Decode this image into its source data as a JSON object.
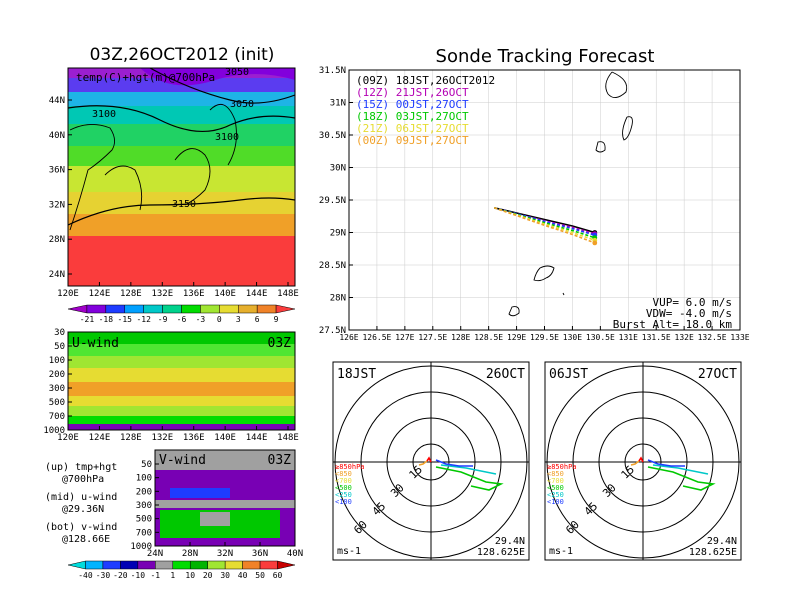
{
  "left_title": "03Z,26OCT2012 (init)",
  "right_title": "Sonde Tracking Forecast",
  "map_panel": {
    "label": "temp(C)+hgt(m)@700hPa",
    "contour_labels": [
      "3100",
      "3050",
      "3100",
      "3150",
      "3050"
    ],
    "lat_ticks": [
      "44N",
      "40N",
      "36N",
      "32N",
      "28N",
      "24N"
    ],
    "lon_ticks": [
      "120E",
      "124E",
      "128E",
      "132E",
      "136E",
      "140E",
      "144E",
      "148E"
    ]
  },
  "temp_colorbar": {
    "labels": [
      "-21",
      "-18",
      "-15",
      "-12",
      "-9",
      "-6",
      "-3",
      "0",
      "3",
      "6",
      "9"
    ],
    "colors": [
      "#a000c8",
      "#8200dc",
      "#1e3cff",
      "#00a0ff",
      "#00c8c8",
      "#00d28c",
      "#00dc00",
      "#a0e632",
      "#e6dc32",
      "#e6af2d",
      "#f08228",
      "#fa3c3c"
    ]
  },
  "u_panel": {
    "label": "U-wind",
    "time": "03Z",
    "p_ticks": [
      "30",
      "50",
      "100",
      "200",
      "300",
      "500",
      "700",
      "1000"
    ],
    "lon_ticks": [
      "120E",
      "124E",
      "128E",
      "132E",
      "136E",
      "140E",
      "144E",
      "148E"
    ]
  },
  "v_panel": {
    "label": "V-wind",
    "time": "03Z",
    "p_ticks": [
      "50",
      "100",
      "200",
      "300",
      "500",
      "700",
      "1000"
    ],
    "lat_ticks": [
      "24N",
      "28N",
      "32N",
      "36N",
      "40N"
    ]
  },
  "legend_notes": {
    "up_1": "(up) tmp+hgt",
    "up_2": "@700hPa",
    "mid_1": "(mid) u-wind",
    "mid_2": "@29.36N",
    "bot_1": "(bot) v-wind",
    "bot_2": "@128.66E"
  },
  "wind_colorbar": {
    "labels": [
      "-40",
      "-30",
      "-20",
      "-10",
      "-1",
      "1",
      "10",
      "20",
      "30",
      "40",
      "50",
      "60"
    ],
    "colors": [
      "#00dcdc",
      "#00b4ff",
      "#1e3cff",
      "#0000b4",
      "#7800b4",
      "#a0a0a0",
      "#00dc00",
      "#00b400",
      "#a0e632",
      "#e6dc32",
      "#f08228",
      "#fa3c3c",
      "#c80000"
    ]
  },
  "track_panel": {
    "lat_ticks": [
      "31.5N",
      "31N",
      "30.5N",
      "30N",
      "29.5N",
      "29N",
      "28.5N",
      "28N",
      "27.5N"
    ],
    "lon_ticks": [
      "126E",
      "126.5E",
      "127E",
      "127.5E",
      "128E",
      "128.5E",
      "129E",
      "129.5E",
      "130E",
      "130.5E",
      "131E",
      "131.5E",
      "132E",
      "132.5E",
      "133E"
    ],
    "legend": [
      {
        "tag": "(09Z)",
        "time": "18JST,26OCT2012",
        "color": "#000000"
      },
      {
        "tag": "(12Z)",
        "time": "21JST,26OCT",
        "color": "#b400b4"
      },
      {
        "tag": "(15Z)",
        "time": "00JST,27OCT",
        "color": "#1e3cff"
      },
      {
        "tag": "(18Z)",
        "time": "03JST,27OCT",
        "color": "#00c800"
      },
      {
        "tag": "(21Z)",
        "time": "06JST,27OCT",
        "color": "#e6dc32"
      },
      {
        "tag": "(00Z)",
        "time": "09JST,27OCT",
        "color": "#f0a028"
      }
    ],
    "vup": "VUP=  6.0 m/s",
    "vdw": "VDW= -4.0 m/s",
    "burst": "Burst Alt= 18.0 km"
  },
  "chart_data": {
    "type": "line",
    "title": "Sonde Tracking Forecast",
    "xlim": [
      126,
      133
    ],
    "ylim": [
      27.5,
      31.5
    ],
    "series": [
      {
        "name": "(09Z) 18JST,26OCT2012",
        "x": [
          128.6,
          129.0,
          129.5,
          130.0,
          130.4
        ],
        "y": [
          29.38,
          29.3,
          29.2,
          29.1,
          29.0
        ]
      },
      {
        "name": "(12Z) 21JST,26OCT",
        "x": [
          128.6,
          129.0,
          129.5,
          130.0,
          130.4
        ],
        "y": [
          29.38,
          29.29,
          29.18,
          29.08,
          28.98
        ]
      },
      {
        "name": "(15Z) 00JST,27OCT",
        "x": [
          128.6,
          129.0,
          129.5,
          130.0,
          130.4
        ],
        "y": [
          29.38,
          29.29,
          29.17,
          29.06,
          28.96
        ]
      },
      {
        "name": "(18Z) 03JST,27OCT",
        "x": [
          128.6,
          129.0,
          129.5,
          130.0,
          130.4
        ],
        "y": [
          29.38,
          29.28,
          29.15,
          29.03,
          28.92
        ]
      },
      {
        "name": "(21Z) 06JST,27OCT",
        "x": [
          128.6,
          129.0,
          129.5,
          130.0,
          130.4
        ],
        "y": [
          29.38,
          29.27,
          29.13,
          29.0,
          28.88
        ]
      },
      {
        "name": "(00Z) 09JST,27OCT",
        "x": [
          128.6,
          129.0,
          129.5,
          130.0,
          130.4
        ],
        "y": [
          29.38,
          29.26,
          29.11,
          28.97,
          28.84
        ]
      }
    ]
  },
  "hodo_left": {
    "time": "18JST",
    "date": "26OCT",
    "rings": [
      "15",
      "30",
      "45",
      "60"
    ],
    "levels": [
      "≥850hPa",
      "<850",
      "<700",
      "<500",
      "<250",
      "<100"
    ],
    "level_colors": [
      "#ff0000",
      "#f0a028",
      "#e6dc32",
      "#00c800",
      "#00c8c8",
      "#1e3cff"
    ],
    "unit": "ms-1",
    "lat": "29.4N",
    "lon": "128.625E"
  },
  "hodo_right": {
    "time": "06JST",
    "date": "27OCT",
    "rings": [
      "15",
      "30",
      "45",
      "60"
    ],
    "levels": [
      "≥850hPa",
      "<850",
      "<700",
      "<500",
      "<250",
      "<100"
    ],
    "level_colors": [
      "#ff0000",
      "#f0a028",
      "#e6dc32",
      "#00c800",
      "#00c8c8",
      "#1e3cff"
    ],
    "unit": "ms-1",
    "lat": "29.4N",
    "lon": "128.625E"
  }
}
